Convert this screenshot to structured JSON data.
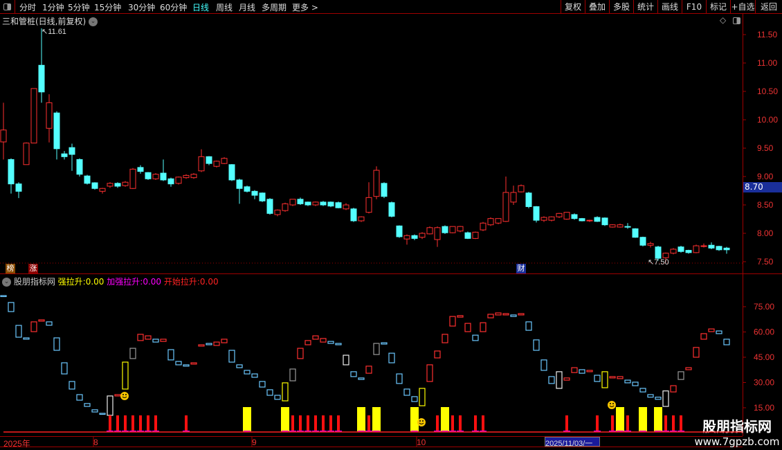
{
  "toolbar": {
    "periods": [
      "分时",
      "1分钟",
      "5分钟",
      "15分钟",
      "30分钟",
      "60分钟",
      "日线",
      "周线",
      "月线",
      "多周期",
      "更多 >"
    ],
    "active": "日线",
    "buttons": [
      "复权",
      "叠加",
      "多股",
      "统计",
      "画线",
      "F10",
      "标记",
      "+自选",
      "返回"
    ]
  },
  "stock": {
    "title": "三和管桩(日线,前复权)",
    "high_mark": "11.61",
    "low_mark": "7.50",
    "current_price": "8.70"
  },
  "price_axis": [
    "11.50",
    "11.00",
    "10.50",
    "10.00",
    "9.50",
    "9.00",
    "8.50",
    "8.00",
    "7.50"
  ],
  "indicator": {
    "name": "股朋指标网",
    "items": [
      {
        "label": "强拉升:",
        "value": "0.00",
        "color": "#ffff00"
      },
      {
        "label": "加强拉升:",
        "value": "0.00",
        "color": "#ff00ff"
      },
      {
        "label": "开始拉升:",
        "value": "0.00",
        "color": "#ff2020"
      }
    ],
    "axis": [
      "75.00",
      "60.00",
      "45.00",
      "30.00",
      "15.00"
    ]
  },
  "tags": [
    {
      "text": "榜",
      "color": "#8a4a00"
    },
    {
      "text": "涨",
      "color": "#8a0000"
    },
    {
      "text": "财",
      "color": "#1a2f9a"
    }
  ],
  "date_axis": {
    "labels": [
      "2025年",
      "8",
      "9",
      "10"
    ],
    "highlight": "2025/11/03/一"
  },
  "watermark": {
    "name": "股朋指标网",
    "url": "www.7gpzb.com"
  },
  "colors": {
    "up": "#ff3030",
    "down": "#54ffff",
    "grid": "#a00000"
  },
  "candles": [
    [
      9.61,
      10.3,
      9.3,
      9.82
    ],
    [
      9.3,
      9.32,
      8.7,
      8.87
    ],
    [
      8.87,
      8.9,
      8.62,
      8.74
    ],
    [
      9.21,
      9.6,
      9.21,
      9.59
    ],
    [
      9.59,
      10.55,
      9.59,
      10.55
    ],
    [
      10.96,
      11.61,
      10.3,
      10.49
    ],
    [
      9.85,
      10.45,
      9.6,
      10.3
    ],
    [
      10.12,
      10.15,
      9.3,
      9.49
    ],
    [
      9.4,
      9.45,
      9.3,
      9.35
    ],
    [
      9.51,
      9.58,
      9.1,
      9.39
    ],
    [
      9.3,
      9.32,
      9.0,
      9.04
    ],
    [
      9.01,
      9.03,
      8.86,
      8.88
    ],
    [
      8.89,
      8.9,
      8.77,
      8.79
    ],
    [
      8.74,
      8.8,
      8.7,
      8.79
    ],
    [
      8.83,
      8.9,
      8.8,
      8.88
    ],
    [
      8.88,
      8.9,
      8.8,
      8.83
    ],
    [
      8.84,
      8.92,
      8.82,
      8.9
    ],
    [
      8.79,
      9.15,
      8.78,
      9.13
    ],
    [
      9.16,
      9.2,
      9.05,
      9.09
    ],
    [
      9.07,
      9.08,
      8.94,
      8.96
    ],
    [
      8.96,
      9.06,
      8.94,
      9.04
    ],
    [
      9.06,
      9.3,
      8.92,
      8.94
    ],
    [
      8.96,
      8.98,
      8.82,
      8.87
    ],
    [
      8.88,
      9.0,
      8.86,
      8.99
    ],
    [
      8.98,
      9.04,
      8.96,
      9.02
    ],
    [
      8.98,
      9.06,
      8.96,
      9.04
    ],
    [
      9.1,
      9.48,
      9.08,
      9.35
    ],
    [
      9.35,
      9.36,
      9.2,
      9.23
    ],
    [
      9.18,
      9.28,
      9.16,
      9.27
    ],
    [
      9.23,
      9.34,
      9.22,
      9.32
    ],
    [
      9.21,
      9.22,
      8.92,
      8.94
    ],
    [
      8.94,
      8.96,
      8.52,
      8.79
    ],
    [
      8.82,
      8.84,
      8.72,
      8.74
    ],
    [
      8.74,
      8.76,
      8.6,
      8.67
    ],
    [
      8.71,
      8.72,
      8.55,
      8.57
    ],
    [
      8.6,
      8.62,
      8.33,
      8.35
    ],
    [
      8.33,
      8.42,
      8.3,
      8.41
    ],
    [
      8.4,
      8.54,
      8.38,
      8.52
    ],
    [
      8.5,
      8.6,
      8.48,
      8.6
    ],
    [
      8.6,
      8.63,
      8.5,
      8.52
    ],
    [
      8.55,
      8.56,
      8.48,
      8.5
    ],
    [
      8.5,
      8.56,
      8.48,
      8.55
    ],
    [
      8.55,
      8.57,
      8.48,
      8.5
    ],
    [
      8.55,
      8.56,
      8.46,
      8.48
    ],
    [
      8.54,
      8.56,
      8.44,
      8.45
    ],
    [
      8.43,
      8.53,
      8.41,
      8.5
    ],
    [
      8.43,
      8.45,
      8.2,
      8.22
    ],
    [
      8.22,
      8.3,
      8.2,
      8.29
    ],
    [
      8.37,
      8.9,
      8.35,
      8.63
    ],
    [
      8.65,
      9.18,
      8.6,
      9.11
    ],
    [
      8.88,
      8.9,
      8.62,
      8.65
    ],
    [
      8.54,
      8.56,
      8.28,
      8.3
    ],
    [
      8.13,
      8.14,
      7.92,
      7.94
    ],
    [
      7.9,
      7.98,
      7.8,
      7.96
    ],
    [
      7.96,
      7.98,
      7.88,
      7.91
    ],
    [
      7.93,
      8.02,
      7.9,
      8.0
    ],
    [
      7.99,
      8.12,
      7.98,
      8.1
    ],
    [
      7.89,
      8.12,
      7.76,
      8.1
    ],
    [
      8.12,
      8.14,
      7.99,
      8.01
    ],
    [
      8.01,
      8.12,
      8.0,
      8.12
    ],
    [
      8.04,
      8.13,
      8.02,
      8.12
    ],
    [
      8.01,
      8.03,
      7.9,
      7.91
    ],
    [
      7.91,
      8.03,
      7.9,
      8.02
    ],
    [
      8.06,
      8.2,
      8.04,
      8.18
    ],
    [
      8.15,
      8.28,
      8.13,
      8.26
    ],
    [
      8.18,
      8.26,
      8.16,
      8.26
    ],
    [
      8.21,
      9.0,
      8.2,
      8.72
    ],
    [
      8.55,
      8.84,
      8.5,
      8.72
    ],
    [
      8.73,
      8.86,
      8.72,
      8.84
    ],
    [
      8.71,
      8.73,
      8.44,
      8.47
    ],
    [
      8.47,
      8.48,
      8.19,
      8.23
    ],
    [
      8.23,
      8.3,
      8.2,
      8.28
    ],
    [
      8.23,
      8.3,
      8.21,
      8.29
    ],
    [
      8.29,
      8.36,
      8.27,
      8.35
    ],
    [
      8.25,
      8.37,
      8.24,
      8.37
    ],
    [
      8.33,
      8.35,
      8.24,
      8.26
    ],
    [
      8.26,
      8.27,
      8.21,
      8.22
    ],
    [
      8.22,
      8.24,
      8.2,
      8.23
    ],
    [
      8.28,
      8.3,
      8.2,
      8.21
    ],
    [
      8.27,
      8.28,
      8.13,
      8.15
    ],
    [
      8.11,
      8.16,
      8.1,
      8.15
    ],
    [
      8.11,
      8.17,
      8.1,
      8.15
    ],
    [
      8.12,
      8.18,
      8.08,
      8.11
    ],
    [
      8.08,
      8.09,
      7.92,
      7.93
    ],
    [
      7.93,
      7.94,
      7.77,
      7.79
    ],
    [
      7.79,
      7.85,
      7.75,
      7.82
    ],
    [
      7.76,
      7.78,
      7.52,
      7.56
    ],
    [
      7.57,
      7.66,
      7.5,
      7.65
    ],
    [
      7.65,
      7.74,
      7.63,
      7.72
    ],
    [
      7.76,
      7.78,
      7.66,
      7.68
    ],
    [
      7.7,
      7.71,
      7.64,
      7.66
    ],
    [
      7.66,
      7.8,
      7.65,
      7.78
    ],
    [
      7.77,
      7.82,
      7.75,
      7.78
    ],
    [
      7.79,
      7.84,
      7.72,
      7.74
    ],
    [
      7.77,
      7.78,
      7.69,
      7.71
    ],
    [
      7.74,
      7.76,
      7.64,
      7.71
    ]
  ],
  "indicator_boxes": [
    [
      81.6,
      81.6,
      "b"
    ],
    [
      77.5,
      72.1,
      "b"
    ],
    [
      63.9,
      56.9,
      "b"
    ],
    [
      56.5,
      55.7,
      "b"
    ],
    [
      66.0,
      60.2,
      "r"
    ],
    [
      67.2,
      66.4,
      "r"
    ],
    [
      66.0,
      64.0,
      "b"
    ],
    [
      56.5,
      49.1,
      "b"
    ],
    [
      41.7,
      35.1,
      "b"
    ],
    [
      30.6,
      26.1,
      "b"
    ],
    [
      22.8,
      19.5,
      "b"
    ],
    [
      17.5,
      15.8,
      "b"
    ],
    [
      13.8,
      12.5,
      "b"
    ],
    [
      11.7,
      11.3,
      "b"
    ],
    [
      22.0,
      10.5,
      "w"
    ],
    [
      22.8,
      22.0,
      "r"
    ],
    [
      42.1,
      26.1,
      "y"
    ],
    [
      50.3,
      44.2,
      "g"
    ],
    [
      58.6,
      54.9,
      "r"
    ],
    [
      57.7,
      55.7,
      "r"
    ],
    [
      55.7,
      54.0,
      "b"
    ],
    [
      55.7,
      54.4,
      "r"
    ],
    [
      49.5,
      43.4,
      "b"
    ],
    [
      42.5,
      40.5,
      "b"
    ],
    [
      40.5,
      39.7,
      "b"
    ],
    [
      41.7,
      40.9,
      "r"
    ],
    [
      52.4,
      51.6,
      "r"
    ],
    [
      53.2,
      52.4,
      "b"
    ],
    [
      54.0,
      52.0,
      "r"
    ],
    [
      55.7,
      53.6,
      "r"
    ],
    [
      49.1,
      42.1,
      "b"
    ],
    [
      40.5,
      38.8,
      "b"
    ],
    [
      37.2,
      35.1,
      "b"
    ],
    [
      35.1,
      33.1,
      "b"
    ],
    [
      30.6,
      27.3,
      "b"
    ],
    [
      25.7,
      22.4,
      "b"
    ],
    [
      22.4,
      20.0,
      "b"
    ],
    [
      29.8,
      19.1,
      "y"
    ],
    [
      38.0,
      31.0,
      "g"
    ],
    [
      50.3,
      44.2,
      "r"
    ],
    [
      54.9,
      52.4,
      "r"
    ],
    [
      57.7,
      55.7,
      "r"
    ],
    [
      56.1,
      54.0,
      "r"
    ],
    [
      54.4,
      53.2,
      "b"
    ],
    [
      53.2,
      52.4,
      "b"
    ],
    [
      46.2,
      40.5,
      "w"
    ],
    [
      36.4,
      33.5,
      "b"
    ],
    [
      32.7,
      31.8,
      "b"
    ],
    [
      39.7,
      35.5,
      "r"
    ],
    [
      53.2,
      46.6,
      "g"
    ],
    [
      53.6,
      52.8,
      "b"
    ],
    [
      47.4,
      41.7,
      "b"
    ],
    [
      35.1,
      29.4,
      "b"
    ],
    [
      26.1,
      22.4,
      "b"
    ],
    [
      21.6,
      18.7,
      "b"
    ],
    [
      26.5,
      16.2,
      "y"
    ],
    [
      40.5,
      30.6,
      "r"
    ],
    [
      48.7,
      44.6,
      "r"
    ],
    [
      58.6,
      53.6,
      "r"
    ],
    [
      69.2,
      63.5,
      "r"
    ],
    [
      69.7,
      68.8,
      "r"
    ],
    [
      65.1,
      60.2,
      "r"
    ],
    [
      58.1,
      54.9,
      "b"
    ],
    [
      65.5,
      60.2,
      "r"
    ],
    [
      70.5,
      68.4,
      "r"
    ],
    [
      71.3,
      70.1,
      "r"
    ],
    [
      70.9,
      70.1,
      "r"
    ],
    [
      70.1,
      69.2,
      "b"
    ],
    [
      70.9,
      70.1,
      "r"
    ],
    [
      66.0,
      61.0,
      "b"
    ],
    [
      55.3,
      49.1,
      "b"
    ],
    [
      43.4,
      37.2,
      "b"
    ],
    [
      33.5,
      29.4,
      "b"
    ],
    [
      36.4,
      26.5,
      "w"
    ],
    [
      32.7,
      31.4,
      "r"
    ],
    [
      38.8,
      35.9,
      "r"
    ],
    [
      37.6,
      35.5,
      "b"
    ],
    [
      37.2,
      36.4,
      "r"
    ],
    [
      34.3,
      30.6,
      "b"
    ],
    [
      36.4,
      26.9,
      "y"
    ],
    [
      33.5,
      32.7,
      "r"
    ],
    [
      33.5,
      32.3,
      "r"
    ],
    [
      31.4,
      29.8,
      "b"
    ],
    [
      30.2,
      28.1,
      "b"
    ],
    [
      26.5,
      24.4,
      "b"
    ],
    [
      22.8,
      21.3,
      "b"
    ],
    [
      21.3,
      20.0,
      "b"
    ],
    [
      25.0,
      15.8,
      "w"
    ],
    [
      28.1,
      24.4,
      "r"
    ],
    [
      36.4,
      31.8,
      "g"
    ],
    [
      38.8,
      37.6,
      "r"
    ],
    [
      50.8,
      45.0,
      "r"
    ],
    [
      59.0,
      55.7,
      "r"
    ],
    [
      61.8,
      60.2,
      "r"
    ],
    [
      60.6,
      59.0,
      "b"
    ],
    [
      55.7,
      52.4,
      "b"
    ]
  ],
  "signals": {
    "red": [
      14,
      15,
      16,
      17,
      18,
      19,
      20,
      24,
      38,
      39,
      40,
      41,
      42,
      43,
      44,
      48,
      57,
      59,
      60,
      62,
      63,
      74,
      78,
      80,
      82,
      87,
      88,
      89
    ],
    "yellow": [
      32,
      37,
      47,
      49,
      54,
      58,
      81,
      84,
      86
    ]
  },
  "smileys": [
    15,
    54,
    79
  ]
}
